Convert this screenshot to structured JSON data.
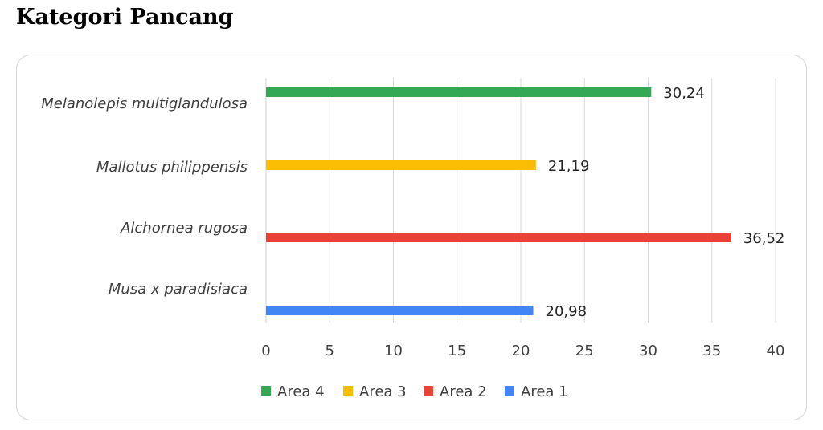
{
  "page": {
    "heading": "Kategori Pancang"
  },
  "chart_data": {
    "type": "bar",
    "orientation": "horizontal",
    "title": "",
    "xlabel": "",
    "ylabel": "",
    "categories": [
      "Melanolepis multiglandulosa",
      "Mallotus philippensis",
      "Alchornea rugosa",
      "Musa x paradisiaca"
    ],
    "series": [
      {
        "name": "Area 4",
        "color": "#34a853",
        "category": "Melanolepis multiglandulosa",
        "value": 30.24,
        "label": "30,24"
      },
      {
        "name": "Area 3",
        "color": "#fbbc04",
        "category": "Mallotus philippensis",
        "value": 21.19,
        "label": "21,19"
      },
      {
        "name": "Area 2",
        "color": "#ea4335",
        "category": "Alchornea rugosa",
        "value": 36.52,
        "label": "36,52"
      },
      {
        "name": "Area 1",
        "color": "#4285f4",
        "category": "Musa x paradisiaca",
        "value": 20.98,
        "label": "20,98"
      }
    ],
    "xlim": [
      0,
      40
    ],
    "xticks": [
      0,
      5,
      10,
      15,
      20,
      25,
      30,
      35,
      40
    ],
    "grid": true,
    "legend_position": "bottom"
  }
}
